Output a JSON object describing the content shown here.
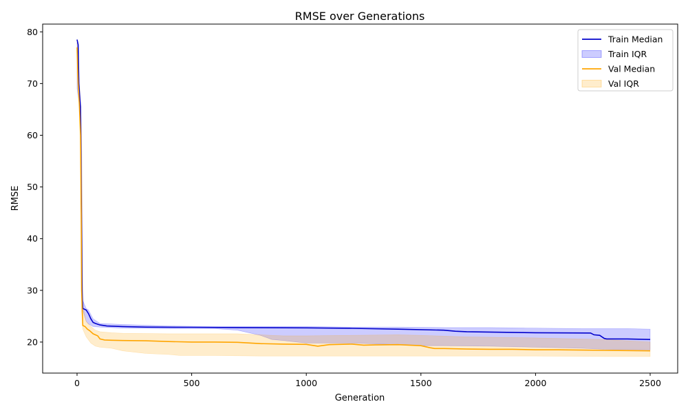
{
  "chart_data": {
    "type": "line",
    "title": "RMSE over Generations",
    "xlabel": "Generation",
    "ylabel": "RMSE",
    "xlim": [
      -150,
      2620
    ],
    "ylim": [
      14,
      81.5
    ],
    "xticks": [
      0,
      500,
      1000,
      1500,
      2000,
      2500
    ],
    "yticks": [
      20,
      30,
      40,
      50,
      60,
      70,
      80
    ],
    "grid": false,
    "legend_position": "top-right",
    "colors": {
      "train": "#0000cc",
      "train_fill": "#0000ff",
      "val": "#ffa500",
      "val_fill": "#ffa500"
    },
    "legend": [
      {
        "label": "Train Median",
        "kind": "line",
        "series": "train"
      },
      {
        "label": "Train IQR",
        "kind": "fill",
        "series": "train"
      },
      {
        "label": "Val Median",
        "kind": "line",
        "series": "val"
      },
      {
        "label": "Val IQR",
        "kind": "fill",
        "series": "val"
      }
    ],
    "series": [
      {
        "name": "Train Median",
        "key": "train",
        "points": [
          [
            0,
            78.5
          ],
          [
            5,
            77.5
          ],
          [
            8,
            70
          ],
          [
            12,
            67
          ],
          [
            15,
            65.5
          ],
          [
            18,
            50
          ],
          [
            20,
            40
          ],
          [
            22,
            30
          ],
          [
            25,
            26.5
          ],
          [
            30,
            26.4
          ],
          [
            40,
            26.2
          ],
          [
            50,
            25.5
          ],
          [
            60,
            24.5
          ],
          [
            70,
            23.8
          ],
          [
            80,
            23.6
          ],
          [
            100,
            23.3
          ],
          [
            130,
            23.1
          ],
          [
            200,
            23.0
          ],
          [
            300,
            22.9
          ],
          [
            500,
            22.85
          ],
          [
            700,
            22.8
          ],
          [
            1000,
            22.75
          ],
          [
            1200,
            22.65
          ],
          [
            1400,
            22.5
          ],
          [
            1600,
            22.3
          ],
          [
            1650,
            22.1
          ],
          [
            1700,
            22.0
          ],
          [
            1850,
            21.9
          ],
          [
            2000,
            21.8
          ],
          [
            2240,
            21.75
          ],
          [
            2255,
            21.4
          ],
          [
            2280,
            21.3
          ],
          [
            2290,
            21.0
          ],
          [
            2300,
            20.7
          ],
          [
            2310,
            20.6
          ],
          [
            2400,
            20.6
          ],
          [
            2500,
            20.5
          ]
        ]
      },
      {
        "name": "Val Median",
        "key": "val",
        "points": [
          [
            0,
            77
          ],
          [
            5,
            70
          ],
          [
            10,
            66
          ],
          [
            15,
            60
          ],
          [
            18,
            45
          ],
          [
            20,
            30
          ],
          [
            25,
            23.2
          ],
          [
            35,
            23.0
          ],
          [
            45,
            22.5
          ],
          [
            55,
            22.2
          ],
          [
            70,
            21.6
          ],
          [
            90,
            21.2
          ],
          [
            100,
            20.6
          ],
          [
            120,
            20.4
          ],
          [
            150,
            20.35
          ],
          [
            200,
            20.3
          ],
          [
            300,
            20.25
          ],
          [
            400,
            20.1
          ],
          [
            500,
            20.0
          ],
          [
            600,
            20.0
          ],
          [
            700,
            19.95
          ],
          [
            800,
            19.7
          ],
          [
            900,
            19.6
          ],
          [
            1000,
            19.55
          ],
          [
            1050,
            19.2
          ],
          [
            1100,
            19.5
          ],
          [
            1200,
            19.6
          ],
          [
            1250,
            19.4
          ],
          [
            1300,
            19.45
          ],
          [
            1400,
            19.5
          ],
          [
            1500,
            19.3
          ],
          [
            1540,
            18.9
          ],
          [
            1560,
            18.75
          ],
          [
            1600,
            18.75
          ],
          [
            1700,
            18.65
          ],
          [
            1800,
            18.6
          ],
          [
            1900,
            18.6
          ],
          [
            2000,
            18.5
          ],
          [
            2100,
            18.5
          ],
          [
            2200,
            18.45
          ],
          [
            2300,
            18.4
          ],
          [
            2400,
            18.35
          ],
          [
            2500,
            18.3
          ]
        ]
      }
    ],
    "bands": [
      {
        "name": "Train IQR",
        "key": "train",
        "lower": [
          [
            0,
            69
          ],
          [
            10,
            66
          ],
          [
            15,
            65
          ],
          [
            20,
            28
          ],
          [
            25,
            26.2
          ],
          [
            40,
            24
          ],
          [
            50,
            23.5
          ],
          [
            70,
            23.0
          ],
          [
            100,
            22.9
          ],
          [
            200,
            22.7
          ],
          [
            400,
            22.6
          ],
          [
            600,
            22.6
          ],
          [
            700,
            22.3
          ],
          [
            800,
            21.3
          ],
          [
            850,
            20.5
          ],
          [
            900,
            20.3
          ],
          [
            1000,
            19.8
          ],
          [
            1200,
            19.8
          ],
          [
            1400,
            19.5
          ],
          [
            1500,
            19.3
          ],
          [
            1600,
            19.3
          ],
          [
            1800,
            19.2
          ],
          [
            2000,
            19.0
          ],
          [
            2200,
            18.8
          ],
          [
            2300,
            18.6
          ],
          [
            2500,
            18.5
          ]
        ],
        "upper": [
          [
            0,
            78
          ],
          [
            10,
            70
          ],
          [
            15,
            67
          ],
          [
            20,
            60
          ],
          [
            25,
            28
          ],
          [
            40,
            26.5
          ],
          [
            50,
            26.2
          ],
          [
            70,
            24.5
          ],
          [
            100,
            23.6
          ],
          [
            200,
            23.4
          ],
          [
            400,
            23.1
          ],
          [
            600,
            23.0
          ],
          [
            800,
            23.0
          ],
          [
            1000,
            23.0
          ],
          [
            1200,
            22.9
          ],
          [
            1400,
            22.9
          ],
          [
            1600,
            22.8
          ],
          [
            1800,
            22.8
          ],
          [
            2000,
            22.7
          ],
          [
            2200,
            22.6
          ],
          [
            2400,
            22.6
          ],
          [
            2500,
            22.5
          ]
        ]
      },
      {
        "name": "Val IQR",
        "key": "val",
        "lower": [
          [
            0,
            72
          ],
          [
            10,
            66
          ],
          [
            15,
            60
          ],
          [
            20,
            26
          ],
          [
            25,
            22.5
          ],
          [
            40,
            21
          ],
          [
            60,
            19.8
          ],
          [
            80,
            19.2
          ],
          [
            100,
            19.0
          ],
          [
            150,
            18.8
          ],
          [
            200,
            18.3
          ],
          [
            300,
            17.8
          ],
          [
            400,
            17.6
          ],
          [
            450,
            17.4
          ],
          [
            600,
            17.4
          ],
          [
            800,
            17.3
          ],
          [
            1000,
            17.3
          ],
          [
            1500,
            17.3
          ],
          [
            2000,
            17.3
          ],
          [
            2300,
            17.2
          ],
          [
            2500,
            17.2
          ]
        ],
        "upper": [
          [
            0,
            78
          ],
          [
            10,
            70
          ],
          [
            15,
            67
          ],
          [
            20,
            60
          ],
          [
            25,
            27
          ],
          [
            40,
            24
          ],
          [
            60,
            23
          ],
          [
            80,
            22.3
          ],
          [
            100,
            22
          ],
          [
            150,
            21.8
          ],
          [
            200,
            21.7
          ],
          [
            400,
            21.6
          ],
          [
            700,
            21.6
          ],
          [
            800,
            21.4
          ],
          [
            900,
            21.2
          ],
          [
            1000,
            21.2
          ],
          [
            1400,
            21.4
          ],
          [
            1500,
            21.3
          ],
          [
            1700,
            21.0
          ],
          [
            2000,
            20.8
          ],
          [
            2300,
            20.5
          ],
          [
            2500,
            20.0
          ]
        ]
      }
    ]
  }
}
